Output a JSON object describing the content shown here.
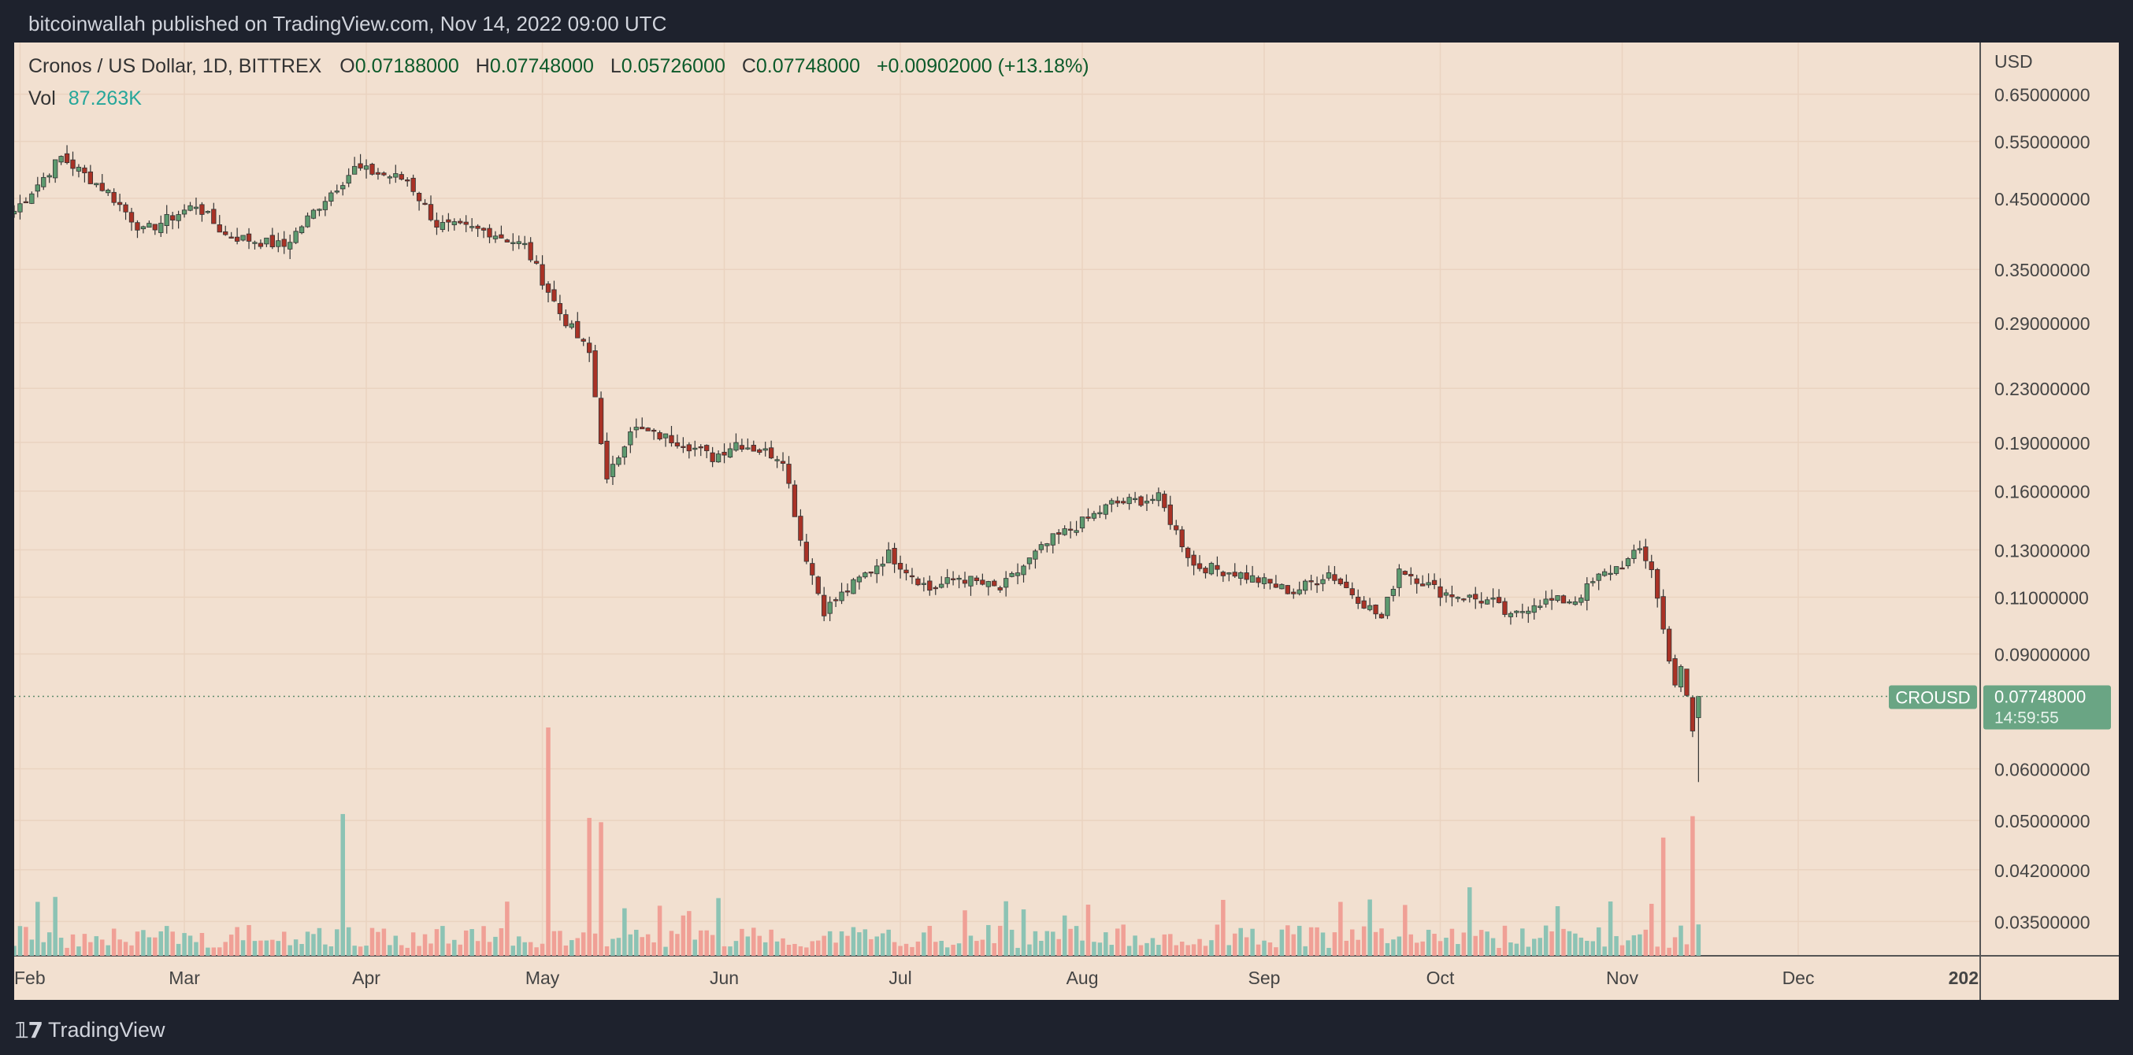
{
  "header": {
    "published_text": "bitcoinwallah published on TradingView.com, Nov 14, 2022 09:00 UTC"
  },
  "legend": {
    "symbol_text": "Cronos / US Dollar, 1D, BITTREX",
    "o_label": "O",
    "o_value": "0.07188000",
    "h_label": "H",
    "h_value": "0.07748000",
    "l_label": "L",
    "l_value": "0.05726000",
    "c_label": "C",
    "c_value": "0.07748000",
    "change": "+0.00902000 (+13.18%)",
    "vol_label": "Vol",
    "vol_value": "87.263K"
  },
  "price_axis": {
    "currency": "USD",
    "ticks": [
      "0.65000000",
      "0.55000000",
      "0.45000000",
      "0.35000000",
      "0.29000000",
      "0.23000000",
      "0.19000000",
      "0.16000000",
      "0.13000000",
      "0.11000000",
      "0.09000000",
      "0.06000000",
      "0.05000000",
      "0.04200000",
      "0.03500000"
    ]
  },
  "time_axis": {
    "ticks": [
      "Feb",
      "Mar",
      "Apr",
      "May",
      "Jun",
      "Jul",
      "Aug",
      "Sep",
      "Oct",
      "Nov",
      "Dec",
      "202"
    ]
  },
  "last_price": {
    "symbol_tag": "CROUSD",
    "price": "0.07748000",
    "countdown": "14:59:55"
  },
  "footer": {
    "brand": "TradingView"
  },
  "colors": {
    "up": "#5d9a6f",
    "down": "#a93226",
    "volume_up": "#8cc3b4",
    "volume_down": "#f0a096",
    "background": "#f2e0d0",
    "price_tag": "#6aa584"
  },
  "chart_data": {
    "type": "candlestick",
    "title": "Cronos / US Dollar, 1D, BITTREX",
    "ylabel": "USD",
    "y_scale": "log",
    "ylim": [
      0.031,
      0.78
    ],
    "xlim": [
      "2022-01-31",
      "2023-01-01"
    ],
    "grid": true,
    "volume_panel": true,
    "anchors": [
      {
        "date": "2022-01-31",
        "close": 0.43
      },
      {
        "date": "2022-02-08",
        "close": 0.52
      },
      {
        "date": "2022-02-16",
        "close": 0.46
      },
      {
        "date": "2022-02-22",
        "close": 0.4
      },
      {
        "date": "2022-03-03",
        "close": 0.44
      },
      {
        "date": "2022-03-08",
        "close": 0.395
      },
      {
        "date": "2022-03-18",
        "close": 0.38
      },
      {
        "date": "2022-03-25",
        "close": 0.45
      },
      {
        "date": "2022-03-30",
        "close": 0.5
      },
      {
        "date": "2022-04-08",
        "close": 0.48
      },
      {
        "date": "2022-04-13",
        "close": 0.41
      },
      {
        "date": "2022-04-22",
        "close": 0.4
      },
      {
        "date": "2022-04-28",
        "close": 0.38
      },
      {
        "date": "2022-05-04",
        "close": 0.3
      },
      {
        "date": "2022-05-09",
        "close": 0.26
      },
      {
        "date": "2022-05-12",
        "close": 0.165
      },
      {
        "date": "2022-05-16",
        "close": 0.2
      },
      {
        "date": "2022-05-25",
        "close": 0.19
      },
      {
        "date": "2022-05-30",
        "close": 0.18
      },
      {
        "date": "2022-06-03",
        "close": 0.19
      },
      {
        "date": "2022-06-11",
        "close": 0.18
      },
      {
        "date": "2022-06-14",
        "close": 0.135
      },
      {
        "date": "2022-06-18",
        "close": 0.105
      },
      {
        "date": "2022-06-22",
        "close": 0.113
      },
      {
        "date": "2022-06-29",
        "close": 0.128
      },
      {
        "date": "2022-07-06",
        "close": 0.113
      },
      {
        "date": "2022-07-11",
        "close": 0.118
      },
      {
        "date": "2022-07-18",
        "close": 0.113
      },
      {
        "date": "2022-07-24",
        "close": 0.128
      },
      {
        "date": "2022-07-27",
        "close": 0.135
      },
      {
        "date": "2022-08-02",
        "close": 0.145
      },
      {
        "date": "2022-08-06",
        "close": 0.153
      },
      {
        "date": "2022-08-14",
        "close": 0.156
      },
      {
        "date": "2022-08-20",
        "close": 0.123
      },
      {
        "date": "2022-08-27",
        "close": 0.12
      },
      {
        "date": "2022-09-06",
        "close": 0.112
      },
      {
        "date": "2022-09-12",
        "close": 0.12
      },
      {
        "date": "2022-09-21",
        "close": 0.102
      },
      {
        "date": "2022-09-24",
        "close": 0.122
      },
      {
        "date": "2022-10-01",
        "close": 0.112
      },
      {
        "date": "2022-10-10",
        "close": 0.108
      },
      {
        "date": "2022-10-13",
        "close": 0.102
      },
      {
        "date": "2022-10-17",
        "close": 0.108
      },
      {
        "date": "2022-10-24",
        "close": 0.109
      },
      {
        "date": "2022-10-28",
        "close": 0.118
      },
      {
        "date": "2022-11-02",
        "close": 0.125
      },
      {
        "date": "2022-11-04",
        "close": 0.13
      },
      {
        "date": "2022-11-06",
        "close": 0.122
      },
      {
        "date": "2022-11-08",
        "close": 0.098
      },
      {
        "date": "2022-11-10",
        "close": 0.081
      },
      {
        "date": "2022-11-11",
        "close": 0.085
      },
      {
        "date": "2022-11-12",
        "close": 0.077
      },
      {
        "date": "2022-11-13",
        "close": 0.0685
      },
      {
        "date": "2022-11-14",
        "open": 0.07188,
        "high": 0.07748,
        "low": 0.05726,
        "close": 0.07748
      }
    ],
    "volume_spikes": [
      {
        "date": "2022-03-28",
        "value": "high"
      },
      {
        "date": "2022-05-02",
        "value": "very high"
      },
      {
        "date": "2022-05-09",
        "value": "high"
      },
      {
        "date": "2022-05-11",
        "value": "high"
      },
      {
        "date": "2022-11-08",
        "value": "high"
      },
      {
        "date": "2022-11-13",
        "value": "high"
      }
    ],
    "last_price": 0.07748
  }
}
